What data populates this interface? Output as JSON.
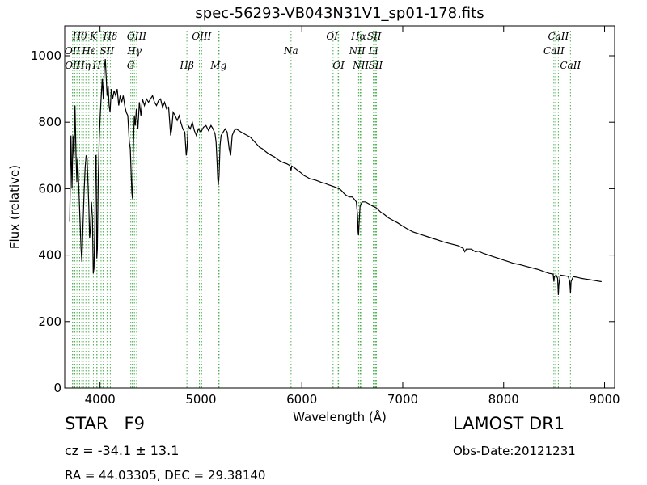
{
  "chart_data": {
    "type": "line",
    "title": "spec-56293-VB043N31V1_sp01-178.fits",
    "xlabel": "Wavelength (Å)",
    "ylabel": "Flux (relative)",
    "xlim": [
      3650,
      9100
    ],
    "ylim": [
      0,
      1090
    ],
    "xticks": [
      4000,
      5000,
      6000,
      7000,
      8000,
      9000
    ],
    "yticks": [
      0,
      200,
      400,
      600,
      800,
      1000
    ],
    "grid": false,
    "series": [
      {
        "points": [
          [
            3700,
            500
          ],
          [
            3712,
            760
          ],
          [
            3722,
            600
          ],
          [
            3732,
            760
          ],
          [
            3742,
            690
          ],
          [
            3752,
            850
          ],
          [
            3762,
            700
          ],
          [
            3770,
            620
          ],
          [
            3778,
            690
          ],
          [
            3790,
            600
          ],
          [
            3800,
            520
          ],
          [
            3812,
            420
          ],
          [
            3820,
            380
          ],
          [
            3830,
            480
          ],
          [
            3842,
            590
          ],
          [
            3852,
            660
          ],
          [
            3862,
            700
          ],
          [
            3872,
            690
          ],
          [
            3882,
            610
          ],
          [
            3890,
            540
          ],
          [
            3897,
            450
          ],
          [
            3905,
            480
          ],
          [
            3915,
            560
          ],
          [
            3925,
            510
          ],
          [
            3933,
            345
          ],
          [
            3940,
            360
          ],
          [
            3948,
            480
          ],
          [
            3955,
            700
          ],
          [
            3962,
            700
          ],
          [
            3968,
            390
          ],
          [
            3974,
            420
          ],
          [
            3982,
            620
          ],
          [
            3992,
            750
          ],
          [
            4002,
            820
          ],
          [
            4012,
            880
          ],
          [
            4022,
            930
          ],
          [
            4032,
            870
          ],
          [
            4042,
            960
          ],
          [
            4052,
            990
          ],
          [
            4060,
            940
          ],
          [
            4070,
            880
          ],
          [
            4080,
            910
          ],
          [
            4090,
            850
          ],
          [
            4100,
            830
          ],
          [
            4112,
            900
          ],
          [
            4125,
            870
          ],
          [
            4140,
            895
          ],
          [
            4155,
            880
          ],
          [
            4170,
            900
          ],
          [
            4185,
            850
          ],
          [
            4200,
            880
          ],
          [
            4215,
            860
          ],
          [
            4230,
            880
          ],
          [
            4245,
            850
          ],
          [
            4260,
            830
          ],
          [
            4275,
            820
          ],
          [
            4290,
            740
          ],
          [
            4300,
            720
          ],
          [
            4308,
            650
          ],
          [
            4315,
            590
          ],
          [
            4322,
            570
          ],
          [
            4330,
            720
          ],
          [
            4340,
            820
          ],
          [
            4350,
            790
          ],
          [
            4360,
            840
          ],
          [
            4375,
            780
          ],
          [
            4390,
            860
          ],
          [
            4405,
            820
          ],
          [
            4420,
            870
          ],
          [
            4440,
            850
          ],
          [
            4460,
            870
          ],
          [
            4480,
            860
          ],
          [
            4500,
            870
          ],
          [
            4520,
            880
          ],
          [
            4540,
            860
          ],
          [
            4560,
            850
          ],
          [
            4580,
            865
          ],
          [
            4600,
            870
          ],
          [
            4620,
            845
          ],
          [
            4640,
            860
          ],
          [
            4660,
            840
          ],
          [
            4680,
            845
          ],
          [
            4700,
            760
          ],
          [
            4710,
            780
          ],
          [
            4725,
            830
          ],
          [
            4745,
            820
          ],
          [
            4765,
            805
          ],
          [
            4785,
            820
          ],
          [
            4800,
            800
          ],
          [
            4820,
            780
          ],
          [
            4840,
            770
          ],
          [
            4855,
            700
          ],
          [
            4862,
            720
          ],
          [
            4875,
            790
          ],
          [
            4895,
            780
          ],
          [
            4915,
            800
          ],
          [
            4935,
            775
          ],
          [
            4955,
            760
          ],
          [
            4975,
            780
          ],
          [
            5000,
            770
          ],
          [
            5025,
            785
          ],
          [
            5050,
            790
          ],
          [
            5075,
            775
          ],
          [
            5100,
            790
          ],
          [
            5120,
            780
          ],
          [
            5140,
            765
          ],
          [
            5150,
            740
          ],
          [
            5160,
            680
          ],
          [
            5167,
            630
          ],
          [
            5172,
            610
          ],
          [
            5180,
            640
          ],
          [
            5190,
            730
          ],
          [
            5200,
            760
          ],
          [
            5220,
            770
          ],
          [
            5240,
            780
          ],
          [
            5260,
            770
          ],
          [
            5280,
            720
          ],
          [
            5295,
            700
          ],
          [
            5310,
            760
          ],
          [
            5330,
            775
          ],
          [
            5350,
            780
          ],
          [
            5375,
            775
          ],
          [
            5400,
            770
          ],
          [
            5430,
            765
          ],
          [
            5460,
            760
          ],
          [
            5490,
            755
          ],
          [
            5520,
            745
          ],
          [
            5550,
            735
          ],
          [
            5580,
            725
          ],
          [
            5610,
            720
          ],
          [
            5640,
            712
          ],
          [
            5670,
            705
          ],
          [
            5700,
            700
          ],
          [
            5730,
            695
          ],
          [
            5760,
            688
          ],
          [
            5790,
            682
          ],
          [
            5820,
            678
          ],
          [
            5850,
            675
          ],
          [
            5880,
            670
          ],
          [
            5893,
            655
          ],
          [
            5900,
            668
          ],
          [
            5930,
            662
          ],
          [
            5960,
            655
          ],
          [
            5990,
            648
          ],
          [
            6020,
            640
          ],
          [
            6050,
            635
          ],
          [
            6080,
            630
          ],
          [
            6110,
            628
          ],
          [
            6140,
            625
          ],
          [
            6170,
            622
          ],
          [
            6200,
            618
          ],
          [
            6230,
            616
          ],
          [
            6260,
            612
          ],
          [
            6290,
            609
          ],
          [
            6320,
            606
          ],
          [
            6350,
            602
          ],
          [
            6380,
            598
          ],
          [
            6400,
            592
          ],
          [
            6420,
            585
          ],
          [
            6440,
            580
          ],
          [
            6470,
            575
          ],
          [
            6500,
            575
          ],
          [
            6520,
            568
          ],
          [
            6540,
            560
          ],
          [
            6552,
            520
          ],
          [
            6558,
            470
          ],
          [
            6562,
            460
          ],
          [
            6568,
            500
          ],
          [
            6578,
            550
          ],
          [
            6600,
            560
          ],
          [
            6630,
            560
          ],
          [
            6660,
            555
          ],
          [
            6700,
            548
          ],
          [
            6740,
            542
          ],
          [
            6780,
            530
          ],
          [
            6820,
            522
          ],
          [
            6860,
            512
          ],
          [
            6900,
            505
          ],
          [
            6950,
            497
          ],
          [
            7000,
            487
          ],
          [
            7050,
            478
          ],
          [
            7100,
            470
          ],
          [
            7150,
            465
          ],
          [
            7200,
            460
          ],
          [
            7250,
            455
          ],
          [
            7300,
            450
          ],
          [
            7350,
            445
          ],
          [
            7400,
            440
          ],
          [
            7450,
            436
          ],
          [
            7500,
            432
          ],
          [
            7550,
            428
          ],
          [
            7600,
            420
          ],
          [
            7615,
            410
          ],
          [
            7630,
            418
          ],
          [
            7680,
            418
          ],
          [
            7720,
            410
          ],
          [
            7750,
            412
          ],
          [
            7800,
            405
          ],
          [
            7850,
            400
          ],
          [
            7900,
            395
          ],
          [
            7950,
            390
          ],
          [
            8000,
            385
          ],
          [
            8050,
            380
          ],
          [
            8100,
            375
          ],
          [
            8150,
            372
          ],
          [
            8200,
            368
          ],
          [
            8250,
            364
          ],
          [
            8300,
            360
          ],
          [
            8350,
            356
          ],
          [
            8400,
            350
          ],
          [
            8450,
            345
          ],
          [
            8490,
            343
          ],
          [
            8498,
            320
          ],
          [
            8502,
            335
          ],
          [
            8520,
            340
          ],
          [
            8535,
            330
          ],
          [
            8542,
            280
          ],
          [
            8547,
            310
          ],
          [
            8560,
            340
          ],
          [
            8600,
            338
          ],
          [
            8640,
            336
          ],
          [
            8655,
            320
          ],
          [
            8662,
            285
          ],
          [
            8668,
            320
          ],
          [
            8690,
            335
          ],
          [
            8730,
            333
          ],
          [
            8770,
            330
          ],
          [
            8810,
            328
          ],
          [
            8850,
            326
          ],
          [
            8890,
            324
          ],
          [
            8930,
            322
          ],
          [
            8970,
            320
          ]
        ]
      }
    ],
    "lines": {
      "top_row": [
        {
          "label": "Hθ",
          "x": 3798
        },
        {
          "label": "K",
          "x": 3934
        },
        {
          "label": "Hδ",
          "x": 4102
        },
        {
          "label": "OIII",
          "x": 4363
        },
        {
          "label": "OIII",
          "x": 5007
        },
        {
          "label": "OI",
          "x": 6300
        },
        {
          "label": "Hα",
          "x": 6563
        },
        {
          "label": "SII",
          "x": 6717
        },
        {
          "label": "CaII",
          "x": 8542
        }
      ],
      "row2": [
        {
          "label": "OII",
          "x": 3727
        },
        {
          "label": "Hε",
          "x": 3889
        },
        {
          "label": "SII",
          "x": 4070
        },
        {
          "label": "Hγ",
          "x": 4341
        },
        {
          "label": "NII",
          "x": 6548
        },
        {
          "label": "Li",
          "x": 6708
        },
        {
          "label": "CaII",
          "x": 8498
        }
      ],
      "row3": [
        {
          "label": "OII",
          "x": 3729
        },
        {
          "label": "Hη",
          "x": 3835
        },
        {
          "label": "H",
          "x": 3968
        },
        {
          "label": "G",
          "x": 4305
        },
        {
          "label": "Hβ",
          "x": 4861
        },
        {
          "label": "Mg",
          "x": 5175
        },
        {
          "label": "OI",
          "x": 6364
        },
        {
          "label": "NII",
          "x": 6584
        },
        {
          "label": "SII",
          "x": 6731
        },
        {
          "label": "CaII",
          "x": 8662
        }
      ],
      "na": {
        "label": "Na",
        "x": 5893
      },
      "extra_lines": [
        3750,
        3771,
        3820,
        3860,
        3970,
        4010,
        4030,
        4320,
        4960,
        4985,
        5180,
        6310,
        6360,
        6578,
        6720,
        6740,
        8515
      ]
    },
    "line_color": "#000000",
    "marker_color": "#4caf50"
  },
  "info": {
    "object_class": "STAR",
    "subclass": "F9",
    "cz": "cz = -34.1 ± 13.1",
    "coords": "RA = 44.03305, DEC = 29.38140",
    "survey": "LAMOST DR1",
    "obs_date": "Obs-Date:20121231"
  }
}
